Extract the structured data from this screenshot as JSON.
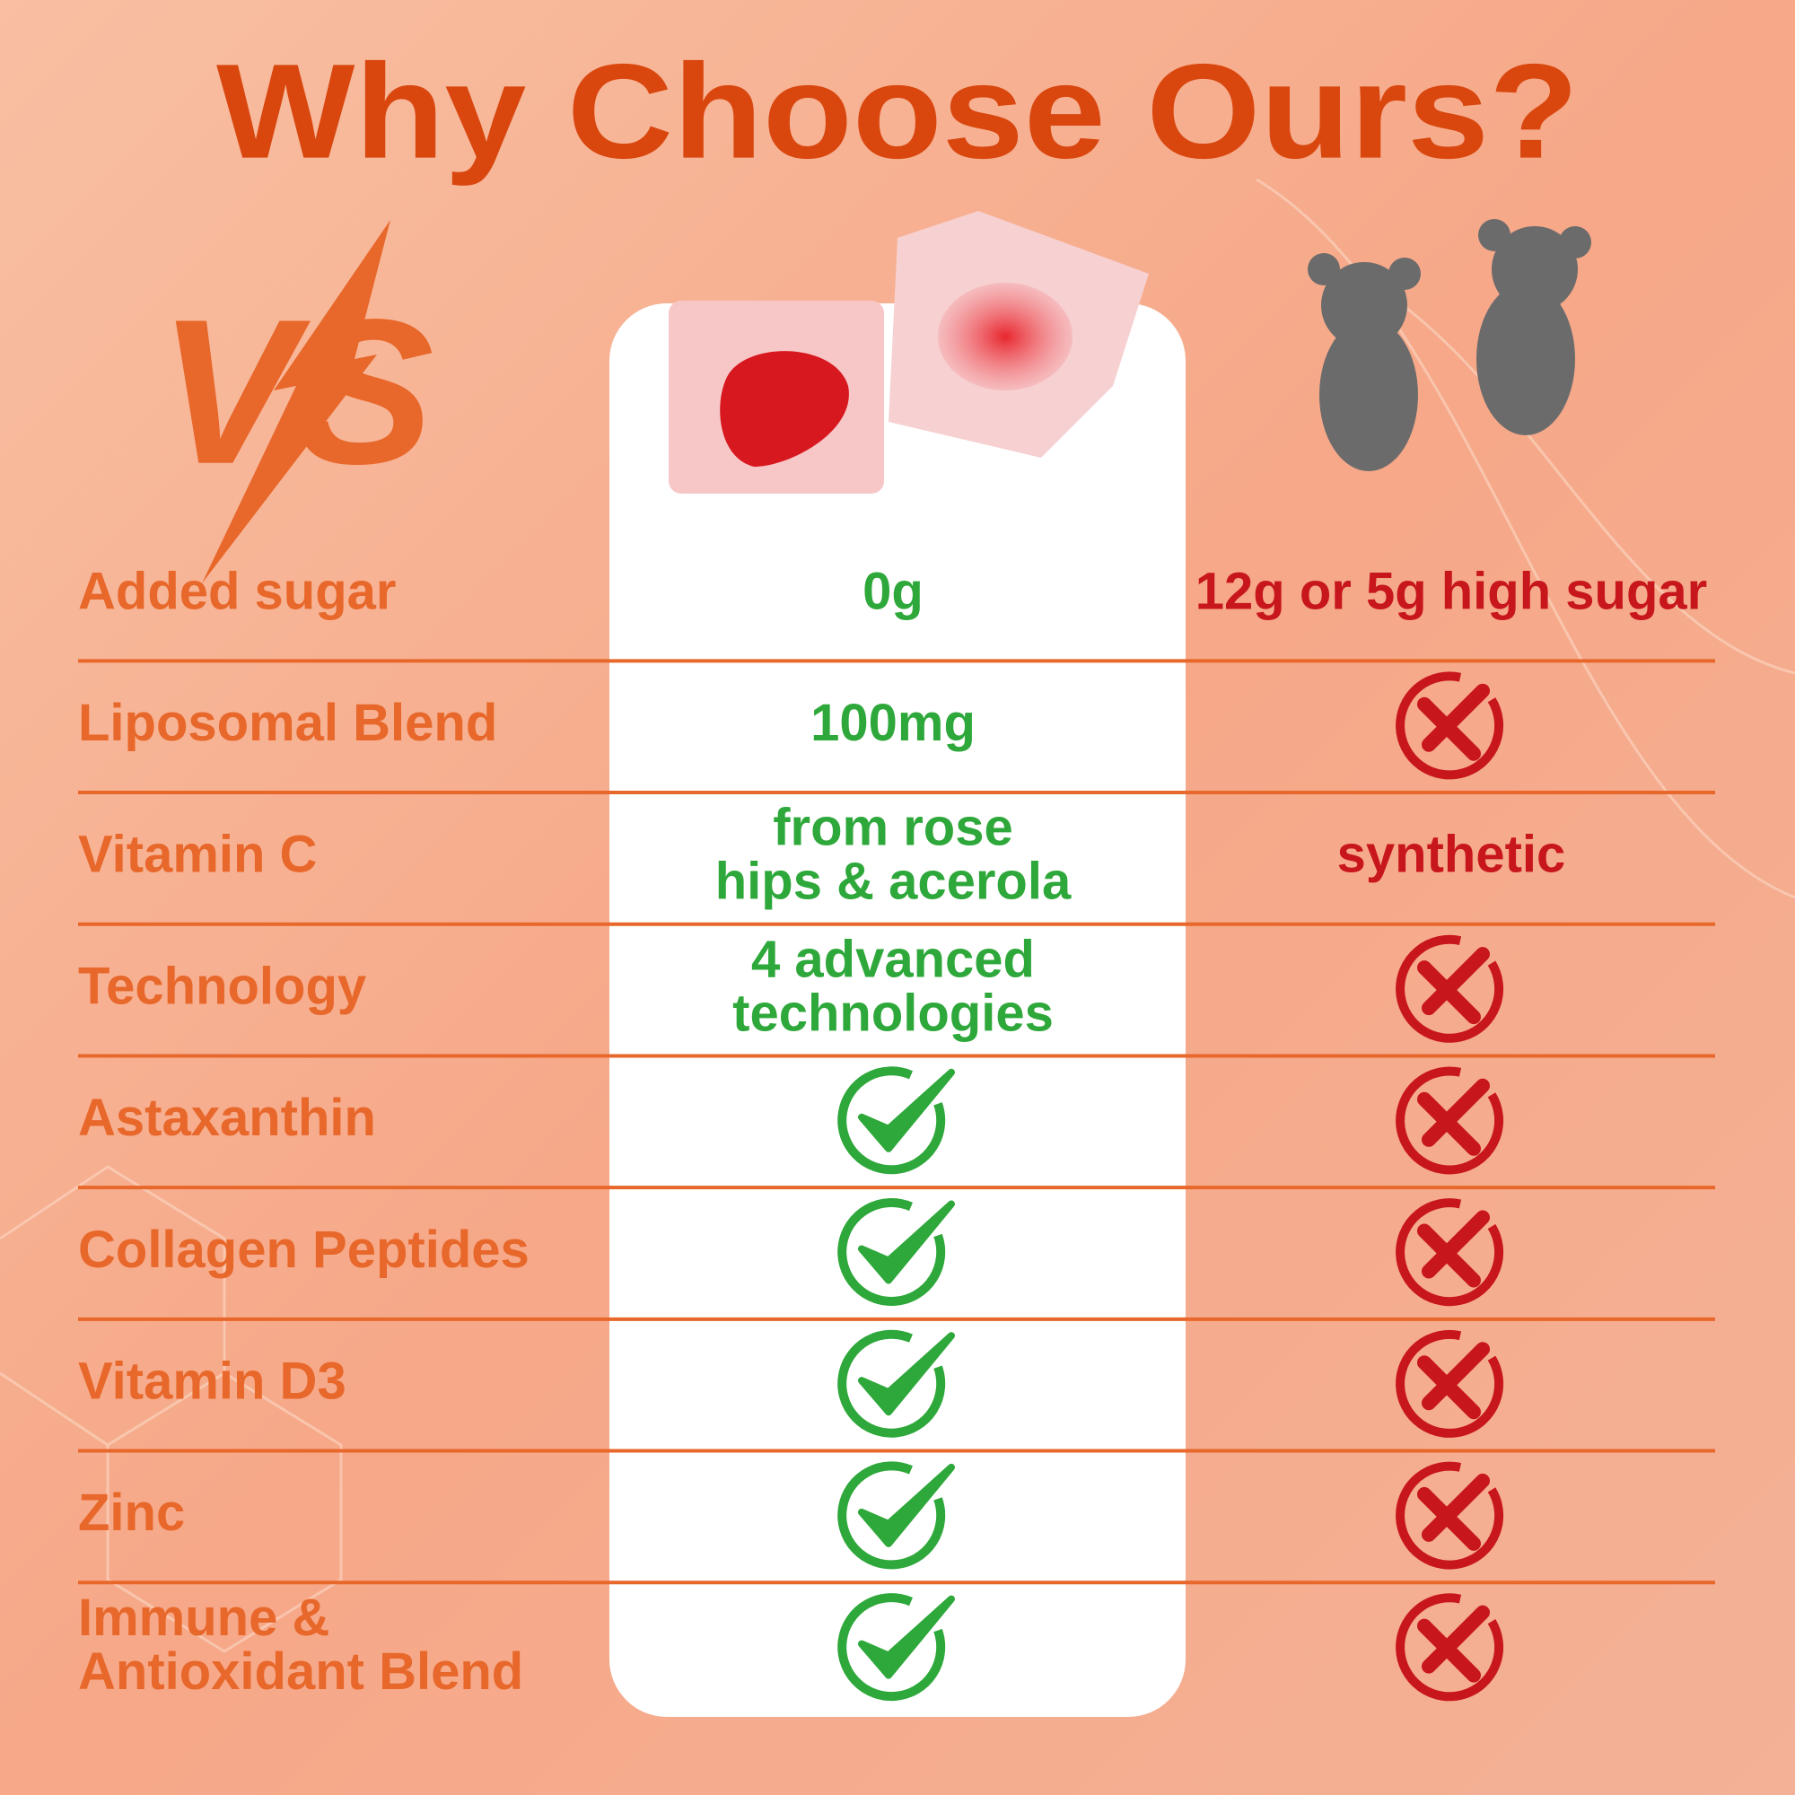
{
  "title": "Why Choose Ours?",
  "vs": "VS",
  "rows": [
    {
      "label": [
        "Added sugar"
      ],
      "ours": [
        "0g"
      ],
      "theirs": [
        "12g or 5g high sugar"
      ]
    },
    {
      "label": [
        "Liposomal Blend"
      ],
      "ours": [
        "100mg"
      ]
    },
    {
      "label": [
        "Vitamin C"
      ],
      "ours": [
        "from rose",
        "hips & acerola"
      ],
      "theirs": [
        "synthetic"
      ]
    },
    {
      "label": [
        "Technology"
      ],
      "ours": [
        "4 advanced",
        "technologies"
      ]
    },
    {
      "label": [
        "Astaxanthin"
      ]
    },
    {
      "label": [
        "Collagen Peptides"
      ]
    },
    {
      "label": [
        "Vitamin D3"
      ]
    },
    {
      "label": [
        "Zinc"
      ]
    },
    {
      "label": [
        "Immune &",
        "Antioxidant Blend"
      ]
    }
  ]
}
